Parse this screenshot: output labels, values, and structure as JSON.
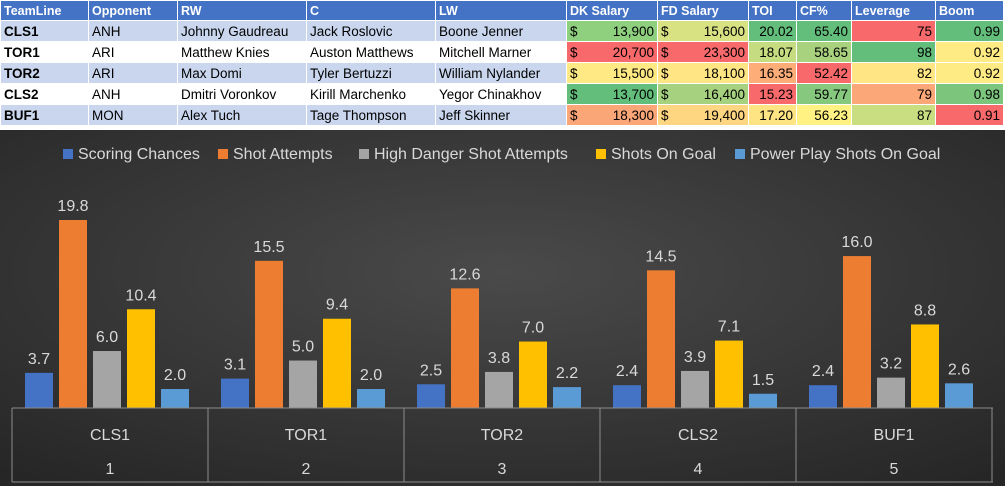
{
  "table": {
    "headers": [
      "TeamLine",
      "Opponent",
      "RW",
      "C",
      "LW",
      "DK Salary",
      "FD Salary",
      "TOI",
      "CF%",
      "Leverage",
      "Boom"
    ],
    "rows": [
      {
        "teamline": "CLS1",
        "opponent": "ANH",
        "rw": "Johnny Gaudreau",
        "c": "Jack Roslovic",
        "lw": "Boone Jenner",
        "dk": "13,900",
        "fd": "15,600",
        "toi": "20.02",
        "cf": "65.40",
        "leverage": "75",
        "boom": "0.99",
        "colors": {
          "dk": "#8fd07f",
          "fd": "#d8e283",
          "toi": "#63be7b",
          "cf": "#63be7b",
          "leverage": "#f8696b",
          "boom": "#63be7b"
        }
      },
      {
        "teamline": "TOR1",
        "opponent": "ARI",
        "rw": "Matthew Knies",
        "c": "Auston Matthews",
        "lw": "Mitchell Marner",
        "dk": "20,700",
        "fd": "23,300",
        "toi": "18.07",
        "cf": "58.65",
        "leverage": "98",
        "boom": "0.92",
        "colors": {
          "dk": "#f8696b",
          "fd": "#f8696b",
          "toi": "#c6dc81",
          "cf": "#a9d27f",
          "leverage": "#63be7b",
          "boom": "#ffeb84"
        }
      },
      {
        "teamline": "TOR2",
        "opponent": "ARI",
        "rw": "Max Domi",
        "c": "Tyler Bertuzzi",
        "lw": "William Nylander",
        "dk": "15,500",
        "fd": "18,100",
        "toi": "16.35",
        "cf": "52.42",
        "leverage": "82",
        "boom": "0.92",
        "colors": {
          "dk": "#ffe984",
          "fd": "#ffe583",
          "toi": "#fcad78",
          "cf": "#f8696b",
          "leverage": "#ffe583",
          "boom": "#ffeb84"
        }
      },
      {
        "teamline": "CLS2",
        "opponent": "ANH",
        "rw": "Dmitri Voronkov",
        "c": "Kirill Marchenko",
        "lw": "Yegor Chinakhov",
        "dk": "13,700",
        "fd": "16,400",
        "toi": "15.23",
        "cf": "59.77",
        "leverage": "79",
        "boom": "0.98",
        "colors": {
          "dk": "#63be7b",
          "fd": "#a6d27f",
          "toi": "#f8696b",
          "cf": "#86c97e",
          "leverage": "#fca777",
          "boom": "#7cc57d"
        }
      },
      {
        "teamline": "BUF1",
        "opponent": "MON",
        "rw": "Alex Tuch",
        "c": "Tage Thompson",
        "lw": "Jeff Skinner",
        "dk": "18,300",
        "fd": "19,400",
        "toi": "17.20",
        "cf": "56.23",
        "leverage": "87",
        "boom": "0.91",
        "colors": {
          "dk": "#fba677",
          "fd": "#fed580",
          "toi": "#ffe483",
          "cf": "#fff283",
          "leverage": "#c9dd81",
          "boom": "#f8696b"
        }
      }
    ],
    "row_colors": [
      "#c9d6ee",
      "#ffffff"
    ],
    "header_color": "#4472c4",
    "currency_symbol": "$"
  },
  "chart_data": {
    "type": "bar",
    "categories": [
      "CLS1",
      "TOR1",
      "TOR2",
      "CLS2",
      "BUF1"
    ],
    "category_numbers": [
      "1",
      "2",
      "3",
      "4",
      "5"
    ],
    "series": [
      {
        "name": "Scoring Chances",
        "values": [
          3.7,
          3.1,
          2.5,
          2.4,
          2.4
        ],
        "color": "#4472c4"
      },
      {
        "name": "Shot Attempts",
        "values": [
          19.8,
          15.5,
          12.6,
          14.5,
          16.0
        ],
        "color": "#ed7d31"
      },
      {
        "name": "High Danger Shot Attempts",
        "values": [
          6.0,
          5.0,
          3.8,
          3.9,
          3.2
        ],
        "color": "#a5a5a5"
      },
      {
        "name": "Shots On Goal",
        "values": [
          10.4,
          9.4,
          7.0,
          7.1,
          8.8
        ],
        "color": "#ffc000"
      },
      {
        "name": "Power Play Shots On Goal",
        "values": [
          2.0,
          2.0,
          2.2,
          1.5,
          2.6
        ],
        "color": "#5b9bd5"
      }
    ],
    "ylim": [
      0,
      22
    ],
    "legend": "top",
    "grid": false,
    "data_labels": true,
    "background": "#3a3a3a",
    "label_color": "#d9d9d9"
  }
}
